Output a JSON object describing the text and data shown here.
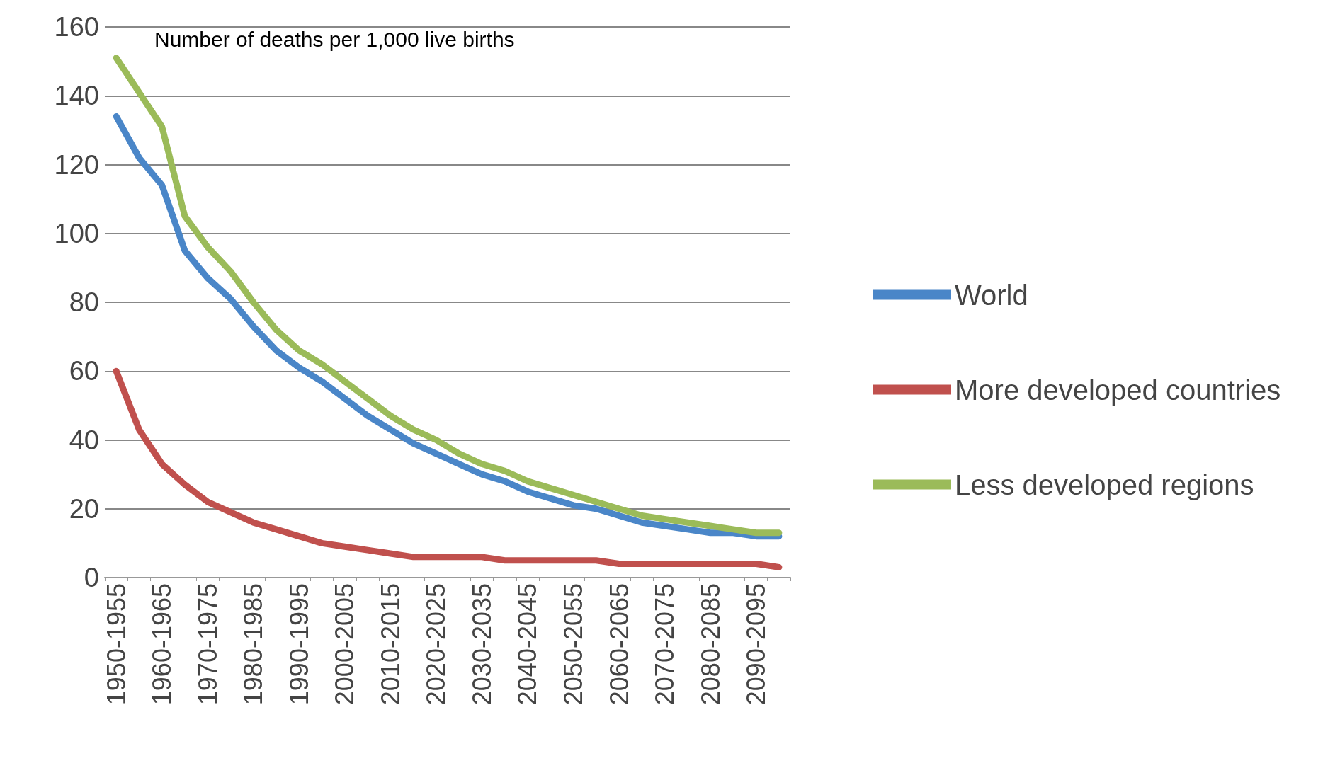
{
  "chart_data": {
    "type": "line",
    "annotations": [
      "Number of deaths per 1,000 live births"
    ],
    "categories": [
      "1950-1955",
      null,
      "1960-1965",
      null,
      "1970-1975",
      null,
      "1980-1985",
      null,
      "1990-1995",
      null,
      "2000-2005",
      null,
      "2010-2015",
      null,
      "2020-2025",
      null,
      "2030-2035",
      null,
      "2040-2045",
      null,
      "2050-2055",
      null,
      "2060-2065",
      null,
      "2070-2075",
      null,
      "2080-2085",
      null,
      "2090-2095",
      null
    ],
    "series": [
      {
        "name": "World",
        "color": "#4a86c8",
        "values": [
          134,
          122,
          114,
          95,
          87,
          81,
          73,
          66,
          61,
          57,
          52,
          47,
          43,
          39,
          36,
          33,
          30,
          28,
          25,
          23,
          21,
          20,
          18,
          16,
          15,
          14,
          13,
          13,
          12,
          12
        ]
      },
      {
        "name": "More developed countries",
        "color": "#c0504d",
        "values": [
          60,
          43,
          33,
          27,
          22,
          19,
          16,
          14,
          12,
          10,
          9,
          8,
          7,
          6,
          6,
          6,
          6,
          5,
          5,
          5,
          5,
          5,
          4,
          4,
          4,
          4,
          4,
          4,
          4,
          3
        ]
      },
      {
        "name": "Less developed regions",
        "color": "#9bbb59",
        "values": [
          151,
          141,
          131,
          105,
          96,
          89,
          80,
          72,
          66,
          62,
          57,
          52,
          47,
          43,
          40,
          36,
          33,
          31,
          28,
          26,
          24,
          22,
          20,
          18,
          17,
          16,
          15,
          14,
          13,
          13
        ]
      }
    ],
    "ylim": [
      0,
      160
    ],
    "yticks": [
      0,
      20,
      40,
      60,
      80,
      100,
      120,
      140,
      160
    ],
    "grid": "y",
    "legend": "right",
    "marker": "none",
    "line_style": "solid"
  }
}
